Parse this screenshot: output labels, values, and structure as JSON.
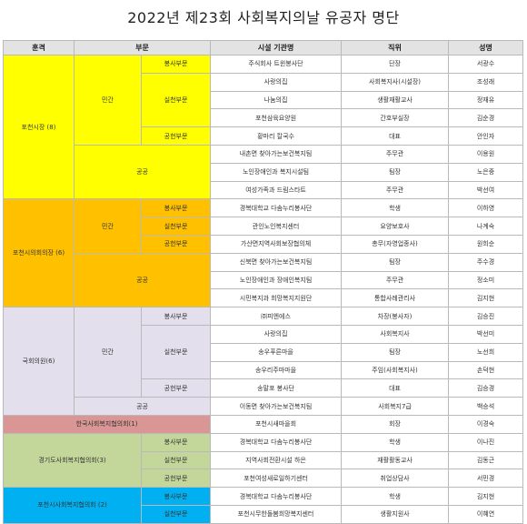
{
  "title": "2022년 제23회 사회복지의날 유공자 명단",
  "headers": [
    "훈격",
    "부문",
    "시설 기관명",
    "직위",
    "성명"
  ],
  "colors": {
    "yellow": "#ffff00",
    "orange": "#ffc000",
    "lavender": "#e4dfec",
    "rose": "#da9694",
    "green": "#c4d79b",
    "blue": "#00b0f0",
    "header": "#e3e3e3"
  },
  "groups": [
    {
      "award": "포천시장 (8)",
      "sub": "민간",
      "public_label": "공공"
    },
    {
      "award": "포천시의회의장 (6)",
      "sub": "민간",
      "public_label": "공공"
    },
    {
      "award": "국회의원(6)",
      "sub": "민간",
      "public_label": "공공"
    },
    {
      "award": "한국사회복지협의회(1)"
    },
    {
      "award": "경기도사회복지협의회(3)"
    },
    {
      "award": "포천시사회복지협의회 (2)"
    }
  ],
  "rows": [
    {
      "sector": "봉사부문",
      "org": "주식회사 트윈봉사단",
      "position": "단장",
      "name": "서광수"
    },
    {
      "sector": "실천부문",
      "org": "사랑의집",
      "position": "사회복지사(시설장)",
      "name": "조성래"
    },
    {
      "sector": "",
      "org": "나눔의집",
      "position": "생활재활교사",
      "name": "정재유"
    },
    {
      "sector": "",
      "org": "포천삼육요양원",
      "position": "간호부실장",
      "name": "김순경"
    },
    {
      "sector": "공헌부문",
      "org": "황마리 칼국수",
      "position": "대표",
      "name": "안인자"
    },
    {
      "sector": "",
      "org": "내촌면 찾아가는보건복지팀",
      "position": "주무관",
      "name": "이용원"
    },
    {
      "sector": "",
      "org": "노인장애인과 복지시설팀",
      "position": "팀장",
      "name": "노은중"
    },
    {
      "sector": "",
      "org": "여성가족과 드림스타트",
      "position": "주무관",
      "name": "박선여"
    },
    {
      "sector": "봉사부문",
      "org": "경복대학교 다솜누리봉사단",
      "position": "학생",
      "name": "이하영"
    },
    {
      "sector": "실천부문",
      "org": "관인노인복지센터",
      "position": "요양보호사",
      "name": "나계숙"
    },
    {
      "sector": "공헌부문",
      "org": "가산면지역사회보장협의체",
      "position": "총무(자영업종사)",
      "name": "원희순"
    },
    {
      "sector": "",
      "org": "신북면 찾아가는보건복지팀",
      "position": "팀장",
      "name": "주수경"
    },
    {
      "sector": "",
      "org": "노인장애인과 장애인복지팀",
      "position": "주무관",
      "name": "정소미"
    },
    {
      "sector": "",
      "org": "시민복지과 희망복지지원단",
      "position": "통합사례관리사",
      "name": "김지현"
    },
    {
      "sector": "봉사부문",
      "org": "㈜피엔에스",
      "position": "차장(봉사자)",
      "name": "김승진"
    },
    {
      "sector": "실천부문",
      "org": "사랑의집",
      "position": "사회복지사",
      "name": "박선미"
    },
    {
      "sector": "",
      "org": "송우푸른마을",
      "position": "팀장",
      "name": "노선희"
    },
    {
      "sector": "",
      "org": "송우리주마마을",
      "position": "주임(사회복지사)",
      "name": "손덕현"
    },
    {
      "sector": "공헌부문",
      "org": "송말포 봉사단",
      "position": "대표",
      "name": "김승경"
    },
    {
      "sector": "",
      "org": "이동면 찾아가는보건복지팀",
      "position": "사회복지7급",
      "name": "백승석"
    },
    {
      "sector": "",
      "org": "포천시새마을회",
      "position": "회장",
      "name": "이경숙"
    },
    {
      "sector": "봉사부문",
      "org": "경복대학교 다솜누리봉사단",
      "position": "학생",
      "name": "이나진"
    },
    {
      "sector": "실천부문",
      "org": "지역사회전환시설 하은",
      "position": "재활활동교사",
      "name": "김동근"
    },
    {
      "sector": "공헌부문",
      "org": "포천여성새로일하기센터",
      "position": "취업상담사",
      "name": "서민경"
    },
    {
      "sector": "봉사부문",
      "org": "경복대학교 다솜누리봉사단",
      "position": "학생",
      "name": "김지현"
    },
    {
      "sector": "실천부문",
      "org": "포천시무한돌봄희망복지센터",
      "position": "생활지원사",
      "name": "이혜연"
    }
  ]
}
